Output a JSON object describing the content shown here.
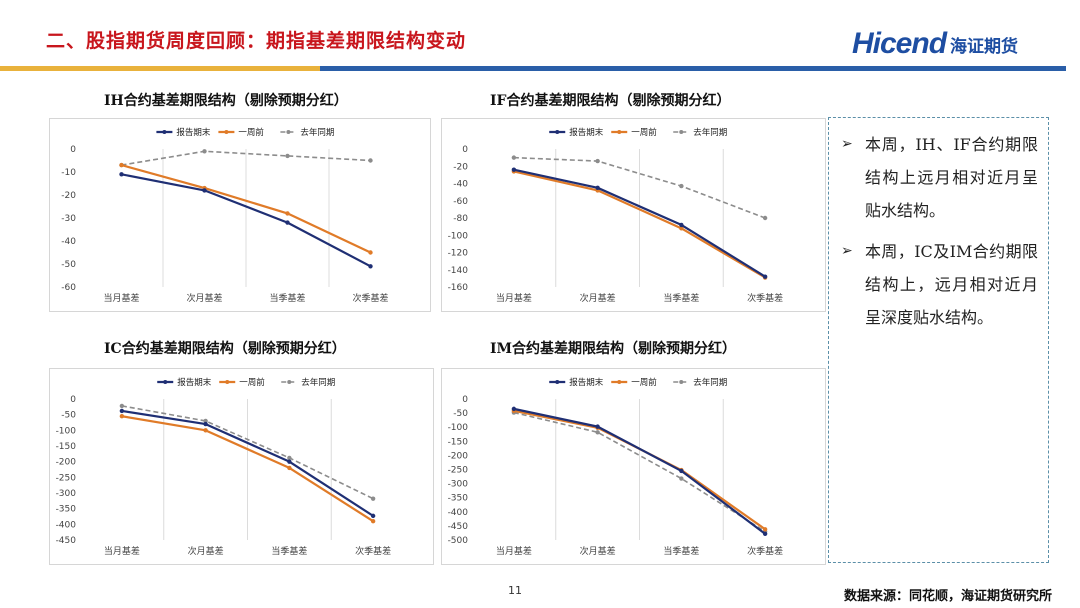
{
  "header": {
    "title": "二、股指期货周度回顾：期指基差期限结构变动",
    "logo_brand": "Hicend",
    "logo_cn": "海证期货",
    "colors": {
      "title": "#c8161d",
      "brand_blue": "#1e4ea2",
      "bar_yellow": "#e9b23c",
      "bar_blue": "#2a5ea8"
    }
  },
  "legend": {
    "series_names": [
      "报告期末",
      "一周前",
      "去年同期"
    ],
    "colors": [
      "#1f2f74",
      "#e07b28",
      "#8c8c8c"
    ]
  },
  "chart_data": [
    {
      "type": "line",
      "title": "IH合约基差期限结构（剔除预期分红）",
      "categories": [
        "当月基差",
        "次月基差",
        "当季基差",
        "次季基差"
      ],
      "ylim": [
        -60,
        0
      ],
      "yticks": [
        0,
        -10,
        -20,
        -30,
        -40,
        -50,
        -60
      ],
      "series": [
        {
          "name": "报告期末",
          "values": [
            -11,
            -18,
            -32,
            -51
          ]
        },
        {
          "name": "一周前",
          "values": [
            -7,
            -17,
            -28,
            -45
          ]
        },
        {
          "name": "去年同期",
          "values": [
            -7,
            -1,
            -3,
            -5
          ]
        }
      ]
    },
    {
      "type": "line",
      "title": "IF合约基差期限结构（剔除预期分红）",
      "categories": [
        "当月基差",
        "次月基差",
        "当季基差",
        "次季基差"
      ],
      "ylim": [
        -160,
        0
      ],
      "yticks": [
        0,
        -20,
        -40,
        -60,
        -80,
        -100,
        -120,
        -140,
        -160
      ],
      "series": [
        {
          "name": "报告期末",
          "values": [
            -24,
            -45,
            -88,
            -148
          ]
        },
        {
          "name": "一周前",
          "values": [
            -26,
            -48,
            -92,
            -149
          ]
        },
        {
          "name": "去年同期",
          "values": [
            -10,
            -14,
            -43,
            -80
          ]
        }
      ]
    },
    {
      "type": "line",
      "title": "IC合约基差期限结构（剔除预期分红）",
      "categories": [
        "当月基差",
        "次月基差",
        "当季基差",
        "次季基差"
      ],
      "ylim": [
        -450,
        0
      ],
      "yticks": [
        0,
        -50,
        -100,
        -150,
        -200,
        -250,
        -300,
        -350,
        -400,
        -450
      ],
      "series": [
        {
          "name": "报告期末",
          "values": [
            -38,
            -80,
            -200,
            -373
          ]
        },
        {
          "name": "一周前",
          "values": [
            -55,
            -100,
            -220,
            -390
          ]
        },
        {
          "name": "去年同期",
          "values": [
            -22,
            -70,
            -188,
            -318
          ]
        }
      ]
    },
    {
      "type": "line",
      "title": "IM合约基差期限结构（剔除预期分红）",
      "categories": [
        "当月基差",
        "次月基差",
        "当季基差",
        "次季基差"
      ],
      "ylim": [
        -500,
        0
      ],
      "yticks": [
        0,
        -50,
        -100,
        -150,
        -200,
        -250,
        -300,
        -350,
        -400,
        -450,
        -500
      ],
      "series": [
        {
          "name": "报告期末",
          "values": [
            -35,
            -98,
            -255,
            -478
          ]
        },
        {
          "name": "一周前",
          "values": [
            -42,
            -102,
            -252,
            -462
          ]
        },
        {
          "name": "去年同期",
          "values": [
            -48,
            -118,
            -282,
            -470
          ]
        }
      ]
    }
  ],
  "notes": [
    "本周，IH、IF合约期限结构上远月相对近月呈贴水结构。",
    "本周，IC及IM合约期限结构上，远月相对近月呈深度贴水结构。"
  ],
  "footer": {
    "page_number": "11",
    "source": "数据来源：同花顺，海证期货研究所"
  }
}
